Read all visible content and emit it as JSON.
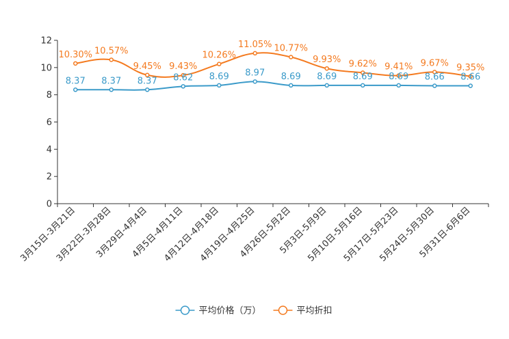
{
  "chart_data": {
    "type": "line",
    "title": "",
    "xlabel": "",
    "ylabel": "",
    "ylim": [
      0,
      12
    ],
    "yticks": [
      0,
      2,
      4,
      6,
      8,
      10,
      12
    ],
    "grid": false,
    "legend_position": "bottom",
    "categories": [
      "3月15日-3月21日",
      "3月22日-3月28日",
      "3月29日-4月4日",
      "4月5日-4月11日",
      "4月12日-4月18日",
      "4月19日-4月25日",
      "4月26日-5月2日",
      "5月3日-5月9日",
      "5月10日-5月16日",
      "5月17日-5月23日",
      "5月24日-5月30日",
      "5月31日-6月6日"
    ],
    "series": [
      {
        "name": "平均价格（万）",
        "color": "#3a9ac9",
        "values": [
          8.37,
          8.37,
          8.37,
          8.62,
          8.69,
          8.97,
          8.69,
          8.69,
          8.69,
          8.69,
          8.66,
          8.66
        ],
        "labels": [
          "8.37",
          "8.37",
          "8.37",
          "8.62",
          "8.69",
          "8.97",
          "8.69",
          "8.69",
          "8.69",
          "8.69",
          "8.66",
          "8.66"
        ]
      },
      {
        "name": "平均折扣",
        "color": "#f47a1f",
        "values": [
          10.3,
          10.57,
          9.45,
          9.43,
          10.26,
          11.05,
          10.77,
          9.93,
          9.62,
          9.41,
          9.67,
          9.35
        ],
        "labels": [
          "10.30%",
          "10.57%",
          "9.45%",
          "9.43%",
          "10.26%",
          "11.05%",
          "10.77%",
          "9.93%",
          "9.62%",
          "9.41%",
          "9.67%",
          "9.35%"
        ]
      }
    ]
  }
}
